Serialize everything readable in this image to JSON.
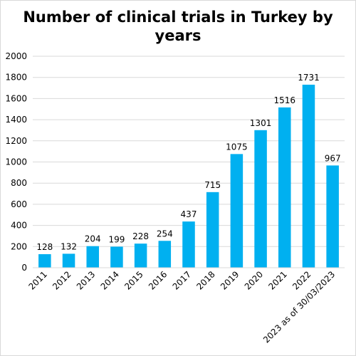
{
  "chart_data": {
    "type": "bar",
    "title": "Number of clinical trials in Turkey by years",
    "categories": [
      "2011",
      "2012",
      "2013",
      "2014",
      "2015",
      "2016",
      "2017",
      "2018",
      "2019",
      "2020",
      "2021",
      "2022",
      "2023 as of 30/03/2023"
    ],
    "values": [
      128,
      132,
      204,
      199,
      228,
      254,
      437,
      715,
      1075,
      1301,
      1516,
      1731,
      967
    ],
    "data_labels": [
      "128",
      "132",
      "204",
      "199",
      "228",
      "254",
      "437",
      "715",
      "1075",
      "1301",
      "1516",
      "1731",
      "967"
    ],
    "yticks": [
      "0",
      "200",
      "400",
      "600",
      "800",
      "1000",
      "1200",
      "1400",
      "1600",
      "1800",
      "2000"
    ],
    "xlabel": "",
    "ylabel": "",
    "ylim": [
      0,
      2000
    ],
    "grid": true,
    "legend": false,
    "bar_color": "#00B0F0",
    "grid_color": "#d9d9d9"
  }
}
